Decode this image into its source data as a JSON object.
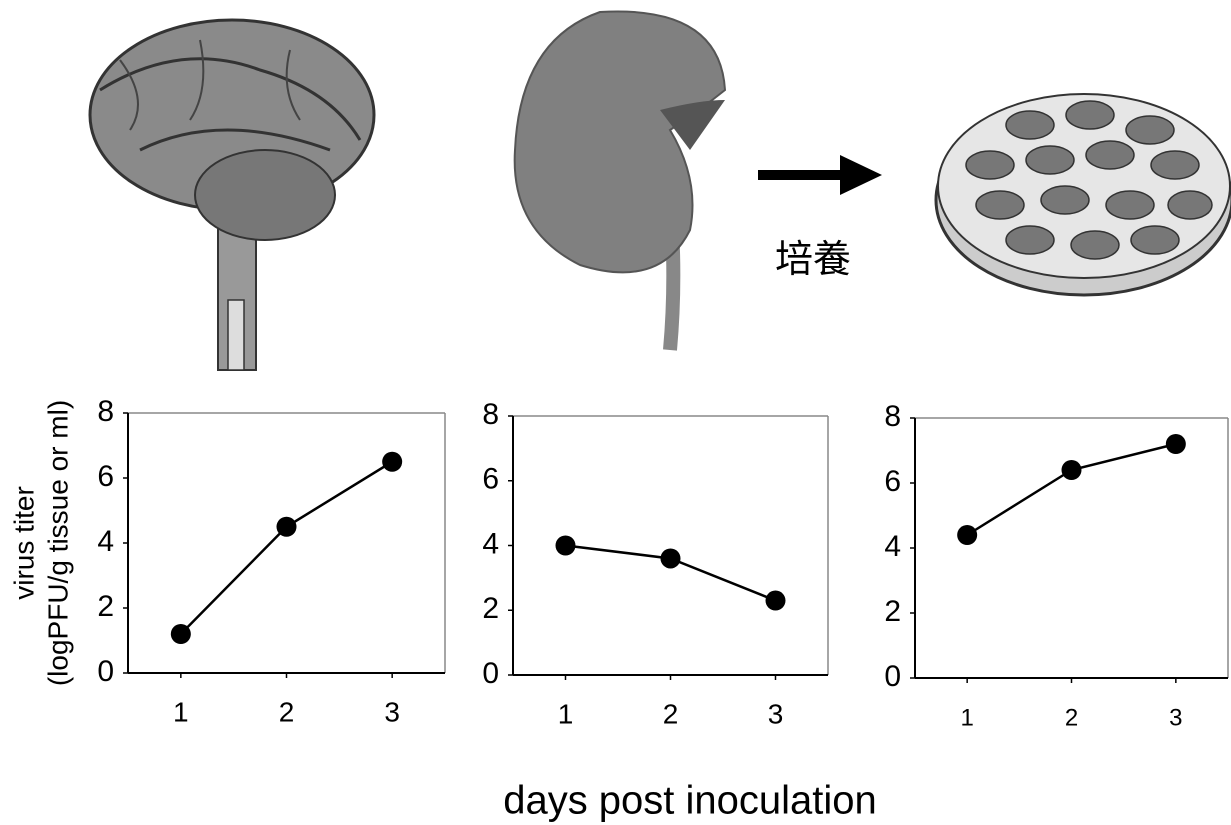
{
  "chart_data": [
    {
      "type": "line",
      "ylabel": [
        "virus titer",
        "(logPFU/g tissue or ml)"
      ],
      "x": [
        1,
        2,
        3
      ],
      "values": [
        1.2,
        4.5,
        6.5
      ],
      "color": "#000000",
      "xlim": [
        0.5,
        3.5
      ],
      "xticks": [
        1,
        2,
        3
      ],
      "ylim": [
        0,
        8
      ],
      "yticks": [
        0,
        2,
        4,
        6,
        8
      ]
    },
    {
      "type": "line",
      "x": [
        1,
        2,
        3
      ],
      "values": [
        4.0,
        3.6,
        2.3
      ],
      "color": "#000000",
      "xlim": [
        0.5,
        3.5
      ],
      "xticks": [
        1,
        2,
        3
      ],
      "ylim": [
        0,
        8
      ],
      "yticks": [
        0,
        2,
        4,
        6,
        8
      ]
    },
    {
      "type": "line",
      "x": [
        1,
        2,
        3
      ],
      "values": [
        4.4,
        6.4,
        7.2
      ],
      "color": "#000000",
      "xlim": [
        0.5,
        3.5
      ],
      "xticks": [
        1,
        2,
        3
      ],
      "ylim": [
        0,
        8
      ],
      "yticks": [
        0,
        2,
        4,
        6,
        8
      ]
    }
  ],
  "xlabel": "days post inoculation",
  "annotation": "培養"
}
